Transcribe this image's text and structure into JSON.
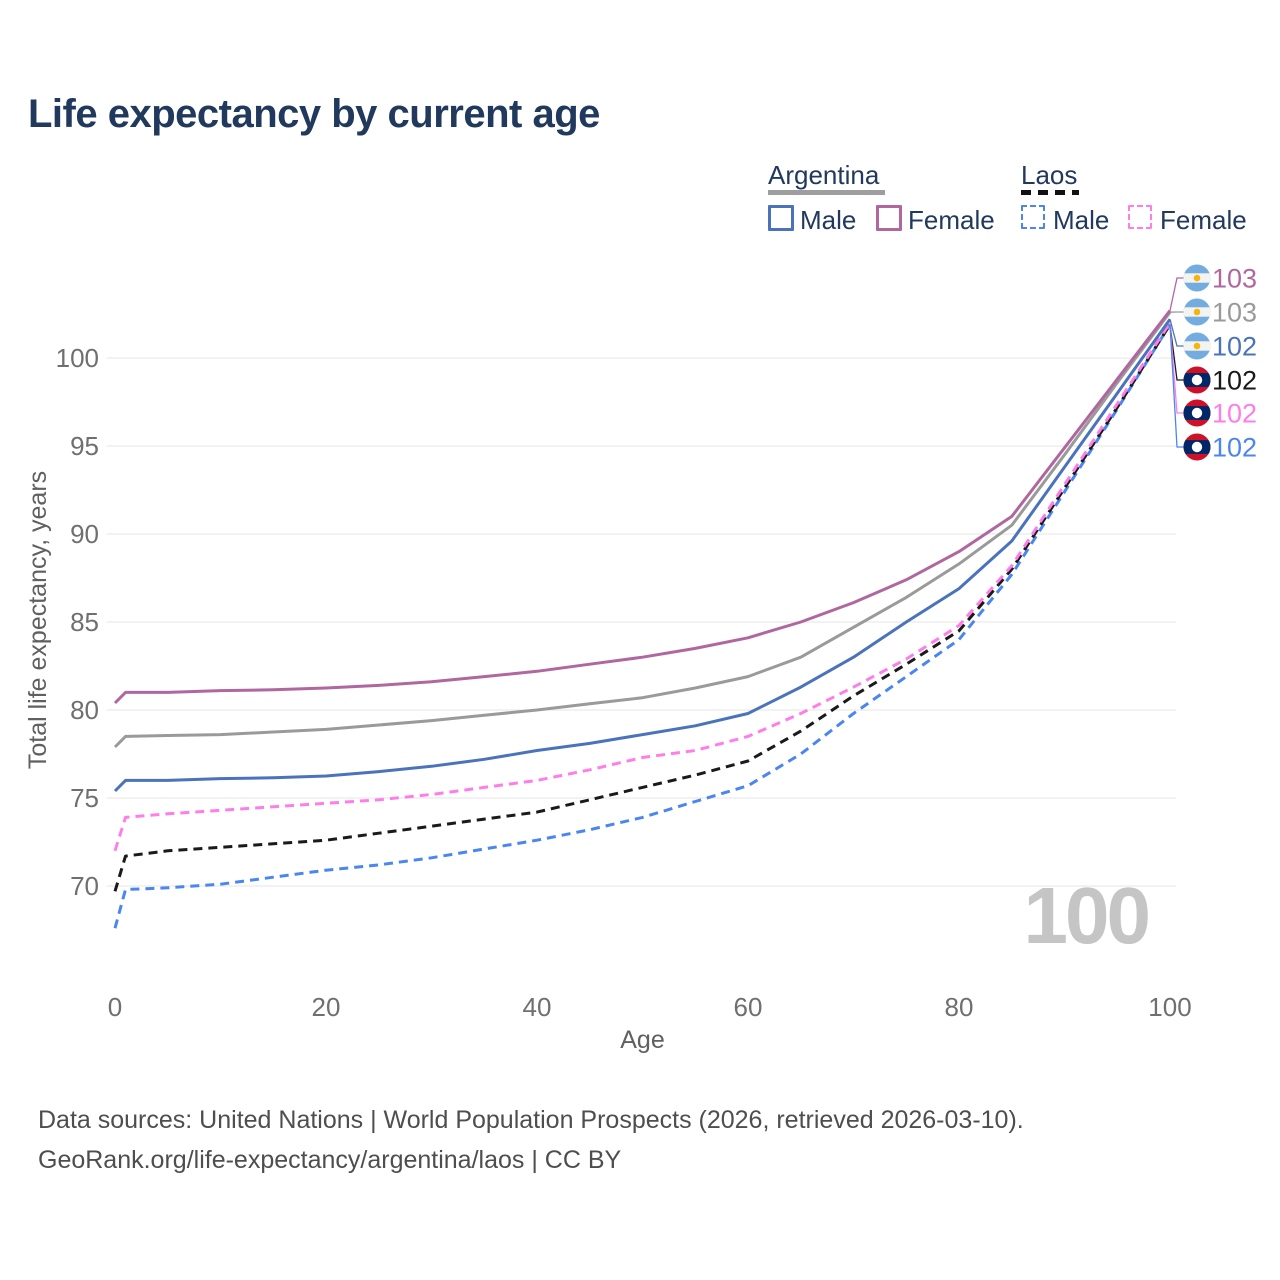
{
  "title": "Life expectancy by current age",
  "watermark": "100",
  "legend": {
    "groups": [
      {
        "label": "Argentina",
        "line_style": "solid",
        "underline_color": "#9e9e9e",
        "items": [
          {
            "label": "Male",
            "color": "#4a73bc"
          },
          {
            "label": "Female",
            "color": "#b0679f"
          }
        ]
      },
      {
        "label": "Laos",
        "line_style": "dashed",
        "underline_color": "#111111",
        "items": [
          {
            "label": "Male",
            "color": "#4b86f0"
          },
          {
            "label": "Female",
            "color": "#ff7de9"
          }
        ]
      }
    ]
  },
  "chart_data": {
    "type": "line",
    "title": "Life expectancy by current age",
    "xlabel": "Age",
    "ylabel": "Total life expectancy, years",
    "xlim": [
      0,
      100
    ],
    "ylim": [
      66,
      104
    ],
    "x_ticks": [
      0,
      20,
      40,
      60,
      80,
      100
    ],
    "y_ticks": [
      70,
      75,
      80,
      85,
      90,
      95,
      100
    ],
    "grid": "horizontal-only",
    "legend_position": "top-right",
    "x": [
      0,
      1,
      5,
      10,
      15,
      20,
      25,
      30,
      35,
      40,
      45,
      50,
      55,
      60,
      65,
      70,
      75,
      80,
      85,
      90,
      95,
      100
    ],
    "series": [
      {
        "name": "Argentina Female",
        "country": "Argentina",
        "sex": "Female",
        "color": "#b0679f",
        "dashed": false,
        "flag": "argentina",
        "end_label": "103",
        "values": [
          80.4,
          81.0,
          81.0,
          81.1,
          81.15,
          81.25,
          81.4,
          81.6,
          81.9,
          82.2,
          82.6,
          83.0,
          83.5,
          84.1,
          85.0,
          86.1,
          87.4,
          89.0,
          91.0,
          94.9,
          98.8,
          102.7
        ]
      },
      {
        "name": "Argentina Both sexes",
        "country": "Argentina",
        "sex": "Both sexes",
        "color": "#9a9a9a",
        "dashed": false,
        "flag": "argentina",
        "end_label": "103",
        "values": [
          77.9,
          78.5,
          78.55,
          78.6,
          78.75,
          78.9,
          79.15,
          79.4,
          79.7,
          80.0,
          80.35,
          80.7,
          81.25,
          81.9,
          83.0,
          84.7,
          86.4,
          88.3,
          90.5,
          94.5,
          98.6,
          102.6
        ]
      },
      {
        "name": "Argentina Male",
        "country": "Argentina",
        "sex": "Male",
        "color": "#4a73bc",
        "dashed": false,
        "flag": "argentina",
        "end_label": "102",
        "values": [
          75.4,
          76.0,
          76.0,
          76.1,
          76.15,
          76.25,
          76.5,
          76.8,
          77.2,
          77.7,
          78.1,
          78.6,
          79.1,
          79.8,
          81.3,
          83.0,
          85.0,
          86.9,
          89.6,
          93.8,
          98.0,
          102.2
        ]
      },
      {
        "name": "Laos Both sexes",
        "country": "Laos",
        "sex": "Both sexes",
        "color": "#1a1a1a",
        "dashed": true,
        "flag": "laos",
        "end_label": "102",
        "values": [
          69.7,
          71.7,
          72.0,
          72.2,
          72.4,
          72.6,
          73.0,
          73.4,
          73.8,
          74.2,
          74.9,
          75.6,
          76.3,
          77.1,
          78.8,
          80.8,
          82.6,
          84.5,
          88.0,
          92.6,
          97.2,
          101.9
        ]
      },
      {
        "name": "Laos Female",
        "country": "Laos",
        "sex": "Female",
        "color": "#ff7de9",
        "dashed": true,
        "flag": "laos",
        "end_label": "102",
        "values": [
          72.0,
          73.9,
          74.1,
          74.3,
          74.5,
          74.7,
          74.9,
          75.2,
          75.6,
          76.0,
          76.6,
          77.3,
          77.7,
          78.5,
          79.8,
          81.3,
          82.9,
          84.8,
          88.2,
          92.8,
          97.4,
          102.0
        ]
      },
      {
        "name": "Laos Male",
        "country": "Laos",
        "sex": "Male",
        "color": "#4b86f0",
        "dashed": true,
        "flag": "laos",
        "end_label": "102",
        "values": [
          67.6,
          69.8,
          69.9,
          70.1,
          70.5,
          70.9,
          71.2,
          71.6,
          72.1,
          72.6,
          73.2,
          73.9,
          74.8,
          75.7,
          77.5,
          79.8,
          81.9,
          84.0,
          87.7,
          92.4,
          97.1,
          101.9
        ]
      }
    ]
  },
  "footer": {
    "line1": "Data sources: United Nations | World Population Prospects (2026, retrieved 2026-03-10).",
    "line2": "GeoRank.org/life-expectancy/argentina/laos | CC BY"
  }
}
